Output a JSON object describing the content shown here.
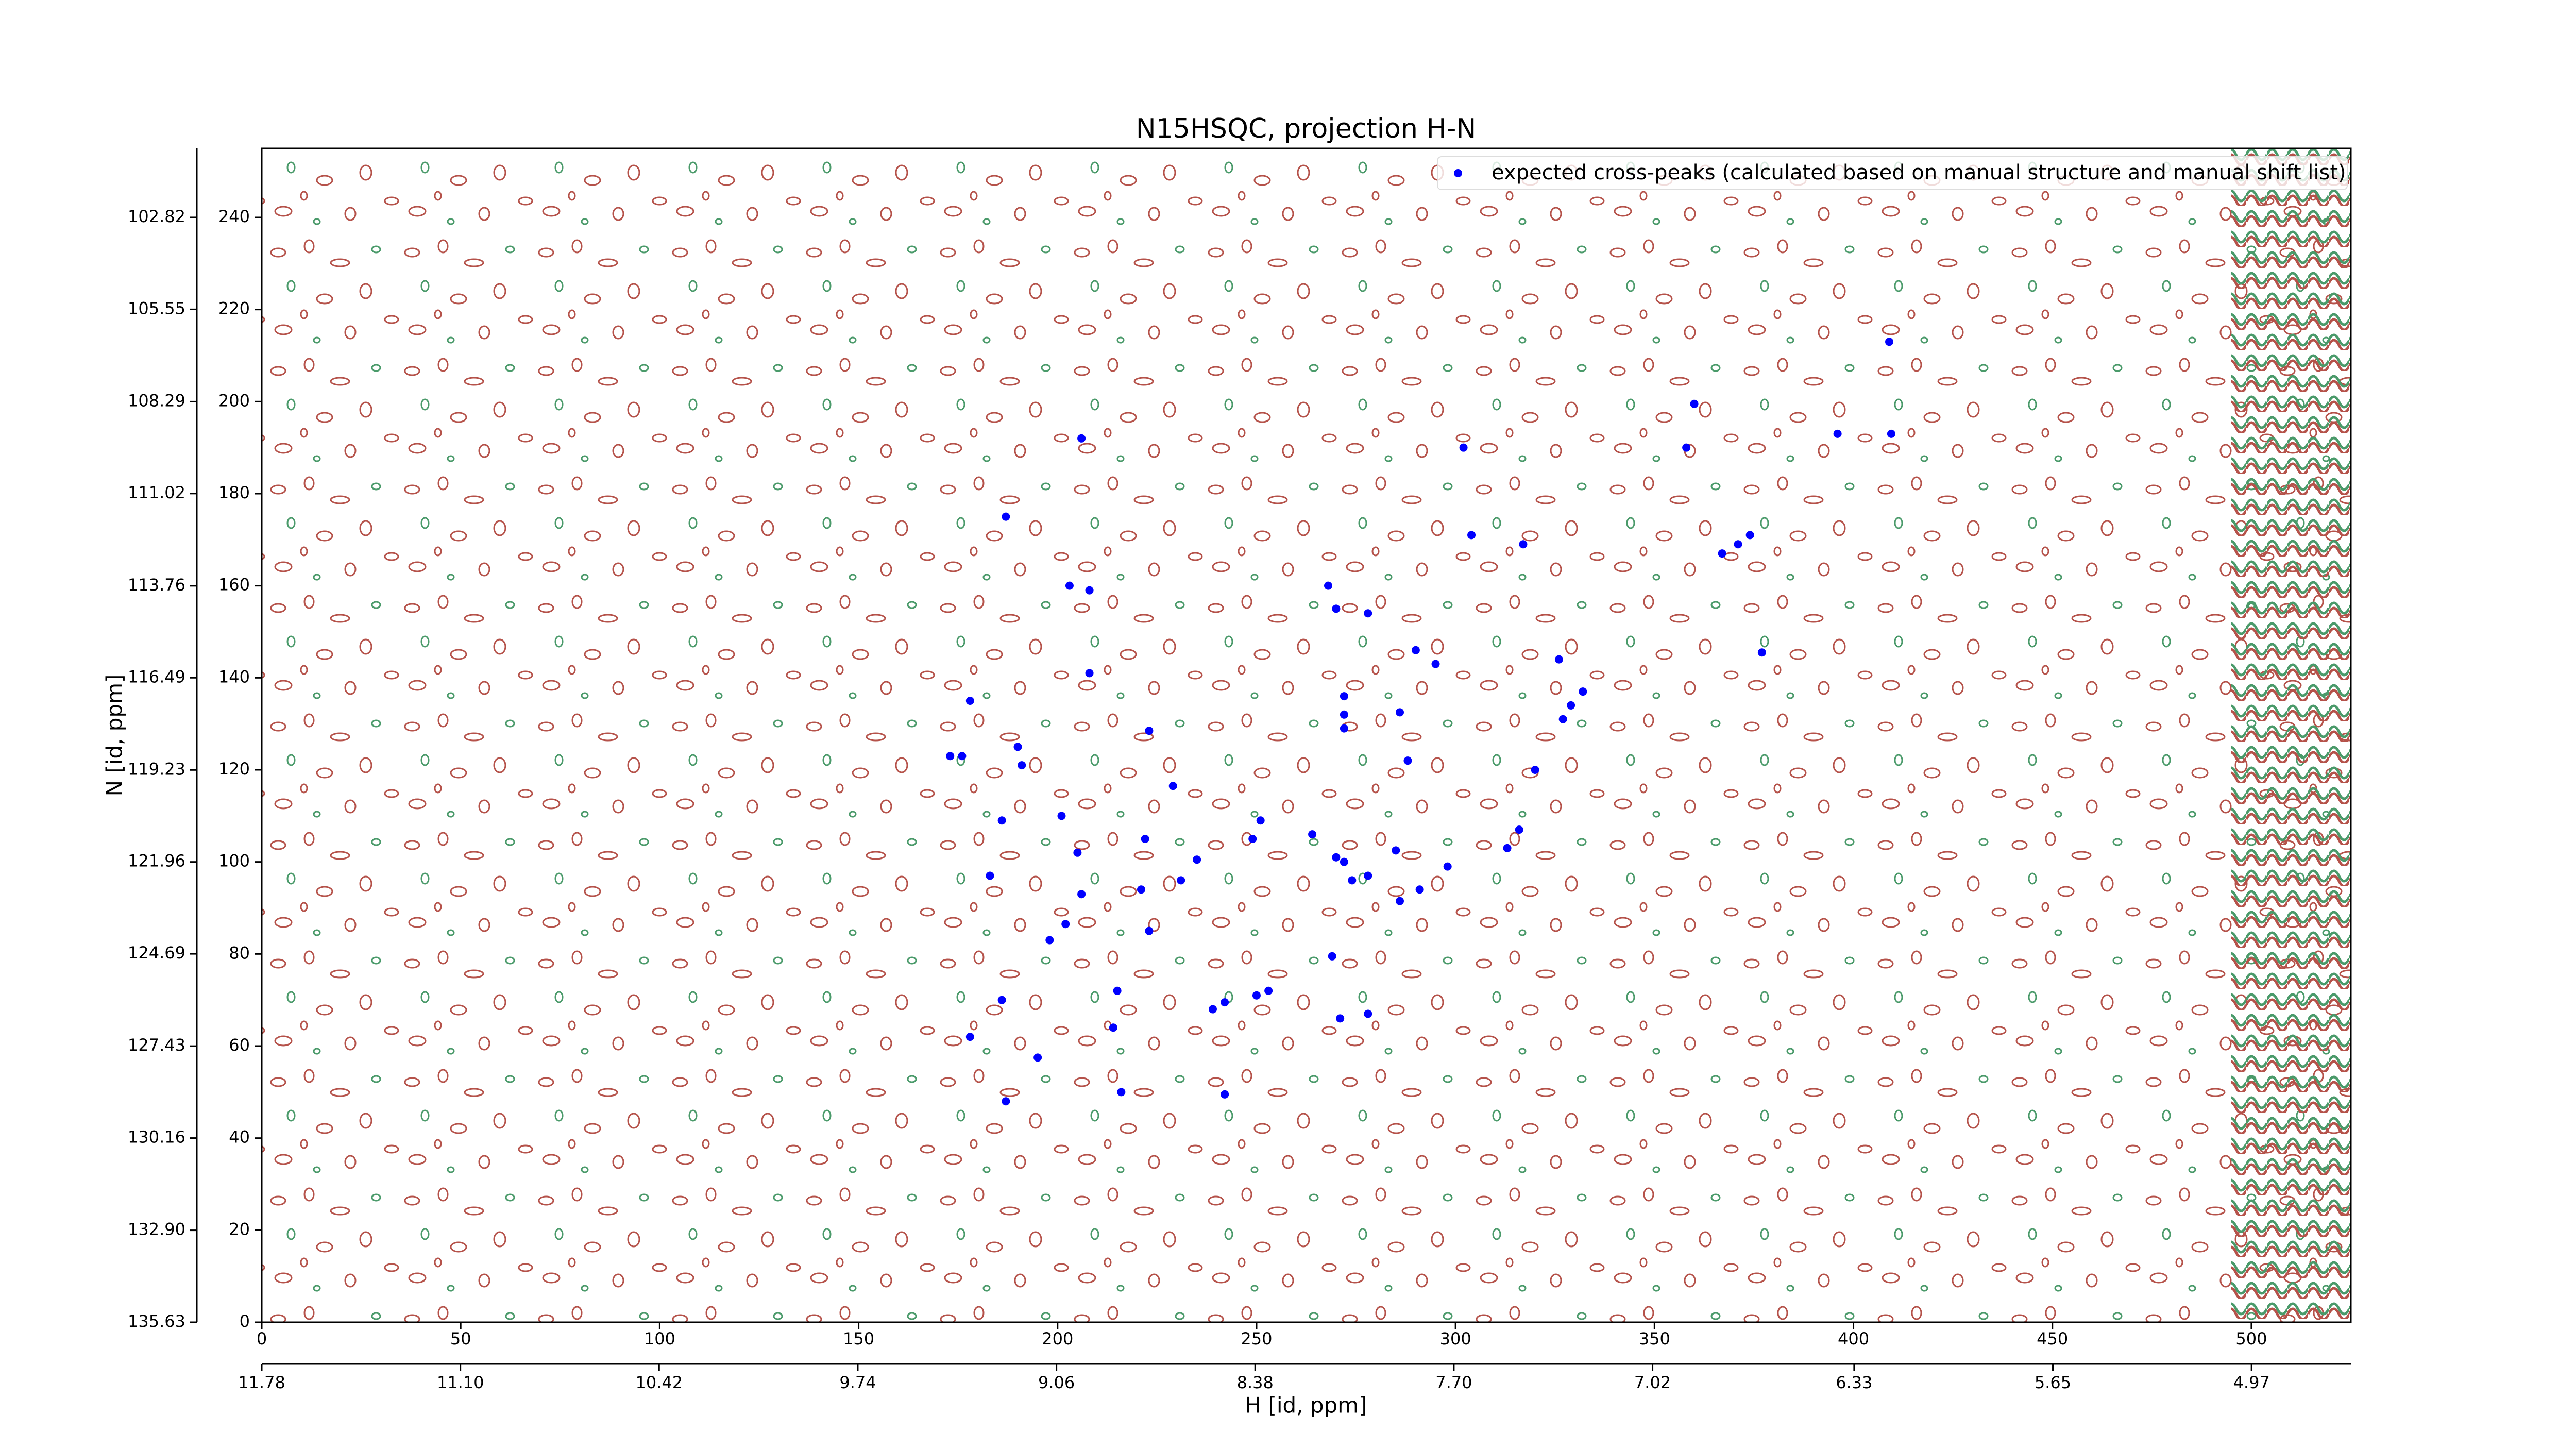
{
  "chart_data": {
    "type": "scatter",
    "title": "N15HSQC, projection H-N",
    "xlabel": "H [id, ppm]",
    "ylabel": "N [id, ppm]",
    "xlim": [
      0,
      525
    ],
    "xticks": [
      0,
      50,
      100,
      150,
      200,
      250,
      300,
      350,
      400,
      450,
      500
    ],
    "ylim": [
      0,
      255
    ],
    "yticks": [
      0,
      20,
      40,
      60,
      80,
      100,
      120,
      140,
      160,
      180,
      200,
      220,
      240
    ],
    "x2lim": [
      11.78,
      4.63
    ],
    "x2ticks": [
      11.78,
      {
        "value": 11.1,
        "label": "11.10"
      },
      10.42,
      9.74,
      9.06,
      8.38,
      {
        "value": 7.7,
        "label": "7.70"
      },
      7.02,
      6.33,
      5.65,
      4.97
    ],
    "y2lim": [
      135.63,
      100.77
    ],
    "y2ticks": [
      135.63,
      {
        "value": 132.9,
        "label": "132.90"
      },
      130.16,
      127.43,
      124.69,
      121.96,
      119.23,
      116.49,
      113.76,
      111.02,
      108.29,
      105.55,
      102.82
    ],
    "legend": "upper right",
    "series": [
      {
        "name": "expected cross-peaks (calculated based on manual structure and manual shift list)",
        "color": "#0000ff",
        "x": [
          409,
          360,
          358,
          396,
          409.5,
          206,
          302,
          187,
          304,
          317,
          371,
          374,
          367,
          203,
          208,
          268,
          270,
          278,
          290,
          295,
          326,
          377,
          208,
          178,
          272,
          272,
          272,
          286,
          332,
          329,
          327,
          223,
          173,
          176,
          190,
          191,
          288,
          320,
          229,
          186,
          201,
          251,
          264,
          222,
          249,
          316,
          313,
          205,
          235,
          270,
          272,
          285,
          298,
          183,
          231,
          274,
          278,
          206,
          221,
          286,
          291,
          202,
          223,
          198,
          269,
          215,
          253,
          250,
          242,
          239,
          186,
          271,
          278,
          214,
          178,
          195,
          216,
          242,
          187
        ],
        "y": [
          213,
          199.5,
          190,
          193,
          193,
          192,
          190,
          175,
          171,
          169,
          169,
          171,
          167,
          160,
          159,
          160,
          155,
          154,
          146,
          143,
          144,
          145.5,
          141,
          135,
          136,
          132,
          129,
          132.5,
          137,
          134,
          131,
          128.5,
          123,
          123,
          125,
          121,
          122,
          120,
          116.5,
          109,
          110,
          109,
          106,
          105,
          105,
          107,
          103,
          102,
          100.5,
          101,
          100,
          102.5,
          99,
          97,
          96,
          96,
          97,
          93,
          94,
          91.5,
          94,
          86.5,
          85,
          83,
          79.5,
          72,
          72,
          71,
          69.5,
          68,
          70,
          66,
          67,
          64,
          62,
          57.5,
          50,
          49.5,
          48
        ]
      }
    ]
  }
}
